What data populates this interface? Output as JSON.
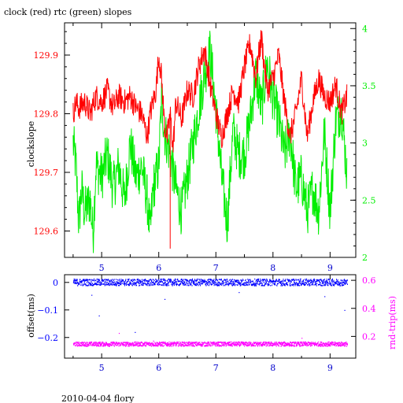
{
  "title": "clock (red) rtc (green) slopes",
  "footer": "2010-04-04 flory",
  "colors": {
    "clock": "#ff0000",
    "rtc": "#00ee00",
    "offset": "#0000ff",
    "rndtrip": "#ff00ff",
    "axis": "#000000"
  },
  "chart_data": [
    {
      "type": "line",
      "title": "clock (red) rtc (green) slopes",
      "xlabel": "",
      "ylabel": "clockslope",
      "xlim": [
        4.35,
        9.45
      ],
      "ylim": [
        129.555,
        129.955
      ],
      "y2lim": [
        2.0,
        4.05
      ],
      "x_ticks": [
        "5",
        "6",
        "7",
        "8",
        "9"
      ],
      "y_ticks": [
        "129.6",
        "129.7",
        "129.8",
        "129.9"
      ],
      "y2_ticks": [
        "2",
        "2.5",
        "3",
        "3.5",
        "4"
      ],
      "grid": false,
      "series": [
        {
          "name": "clock",
          "axis": "left",
          "color": "#ff0000",
          "x": [
            4.5,
            4.55,
            4.6,
            4.7,
            4.8,
            4.9,
            5.0,
            5.1,
            5.2,
            5.3,
            5.4,
            5.5,
            5.6,
            5.7,
            5.8,
            5.85,
            5.95,
            6.0,
            6.05,
            6.1,
            6.15,
            6.2,
            6.25,
            6.3,
            6.4,
            6.5,
            6.6,
            6.7,
            6.8,
            6.9,
            7.0,
            7.1,
            7.2,
            7.3,
            7.4,
            7.5,
            7.6,
            7.7,
            7.75,
            7.8,
            7.85,
            7.9,
            8.0,
            8.1,
            8.2,
            8.3,
            8.4,
            8.5,
            8.6,
            8.7,
            8.8,
            8.9,
            9.0,
            9.1,
            9.2,
            9.3
          ],
          "y": [
            129.8,
            129.82,
            129.81,
            129.82,
            129.8,
            129.83,
            129.82,
            129.84,
            129.81,
            129.83,
            129.82,
            129.83,
            129.81,
            129.8,
            129.76,
            129.8,
            129.84,
            129.9,
            129.86,
            129.78,
            129.76,
            129.8,
            129.74,
            129.82,
            129.79,
            129.84,
            129.83,
            129.88,
            129.91,
            129.85,
            129.8,
            129.76,
            129.8,
            129.84,
            129.82,
            129.88,
            129.92,
            129.86,
            129.9,
            129.93,
            129.88,
            129.84,
            129.86,
            129.9,
            129.82,
            129.76,
            129.8,
            129.86,
            129.76,
            129.82,
            129.86,
            129.83,
            129.82,
            129.85,
            129.8,
            129.83
          ]
        },
        {
          "name": "rtc",
          "axis": "right",
          "color": "#00ee00",
          "x": [
            4.5,
            4.55,
            4.6,
            4.65,
            4.7,
            4.8,
            4.85,
            4.9,
            5.0,
            5.1,
            5.2,
            5.3,
            5.4,
            5.5,
            5.6,
            5.7,
            5.8,
            5.85,
            5.9,
            6.0,
            6.05,
            6.1,
            6.2,
            6.3,
            6.4,
            6.5,
            6.6,
            6.7,
            6.8,
            6.9,
            7.0,
            7.1,
            7.2,
            7.3,
            7.4,
            7.5,
            7.6,
            7.7,
            7.8,
            7.9,
            8.0,
            8.1,
            8.2,
            8.3,
            8.4,
            8.5,
            8.6,
            8.7,
            8.8,
            8.9,
            9.0,
            9.1,
            9.2,
            9.3
          ],
          "y": [
            3.0,
            2.8,
            2.3,
            2.6,
            2.4,
            2.5,
            2.2,
            2.8,
            2.7,
            2.9,
            2.6,
            2.8,
            2.5,
            3.0,
            2.7,
            2.8,
            2.5,
            2.2,
            2.6,
            2.8,
            3.4,
            3.1,
            2.9,
            2.6,
            2.4,
            2.7,
            3.0,
            3.3,
            3.6,
            3.8,
            3.3,
            2.7,
            2.3,
            3.1,
            2.9,
            2.9,
            3.2,
            3.6,
            3.3,
            3.7,
            3.4,
            3.2,
            2.9,
            3.1,
            2.6,
            2.7,
            2.4,
            2.6,
            2.4,
            3.1,
            2.4,
            3.2,
            3.3,
            2.7
          ]
        }
      ],
      "spikes": [
        {
          "series": "clock",
          "x": 6.2,
          "y_from": 129.8,
          "y_to": 129.57
        }
      ]
    },
    {
      "type": "scatter",
      "xlabel": "",
      "ylabel": "offset(ms)",
      "y2label": "rnd-trip(ms)",
      "xlim": [
        4.35,
        9.45
      ],
      "ylim": [
        -0.275,
        0.028
      ],
      "y2lim": [
        0.045,
        0.64
      ],
      "x_ticks": [
        "5",
        "6",
        "7",
        "8",
        "9"
      ],
      "y_ticks": [
        "0",
        "−0.1",
        "−0.2"
      ],
      "y2_ticks": [
        "0.2",
        "0.4",
        "0.6"
      ],
      "grid": false,
      "series": [
        {
          "name": "offset",
          "axis": "left",
          "color": "#0000ff",
          "x_range": [
            4.5,
            9.3
          ],
          "y_center": 0.0,
          "y_spread": 0.012,
          "outliers": [
            [
              4.82,
              -0.045
            ],
            [
              4.95,
              -0.12
            ],
            [
              5.58,
              -0.18
            ],
            [
              6.1,
              -0.06
            ],
            [
              7.4,
              -0.035
            ],
            [
              8.9,
              -0.05
            ],
            [
              9.25,
              -0.1
            ]
          ]
        },
        {
          "name": "rnd-trip",
          "axis": "right",
          "color": "#ff00ff",
          "x_range": [
            4.5,
            9.3
          ],
          "y_center": 0.145,
          "y_spread": 0.015,
          "outliers": [
            [
              5.3,
              0.225
            ],
            [
              5.9,
              0.17
            ],
            [
              8.5,
              0.19
            ]
          ]
        }
      ]
    }
  ]
}
